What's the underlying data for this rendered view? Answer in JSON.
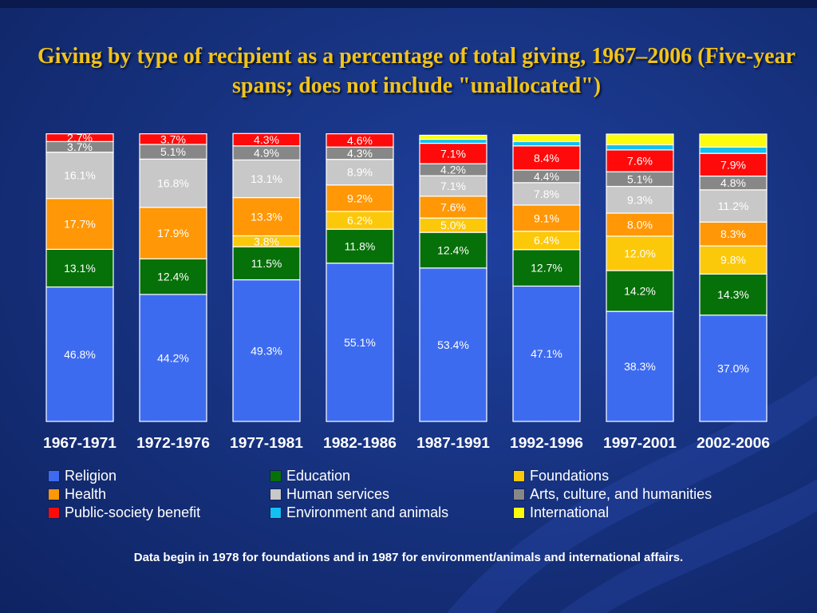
{
  "title": "Giving by type of recipient as a percentage of total giving, 1967–2006 (Five-year spans; does not include \"unallocated\")",
  "footnote": "Data begin in 1978 for foundations and in 1987 for environment/animals and international affairs.",
  "chart_data": {
    "type": "bar",
    "stacked": true,
    "categories": [
      "1967-1971",
      "1972-1976",
      "1977-1981",
      "1982-1986",
      "1987-1991",
      "1992-1996",
      "1997-2001",
      "2002-2006"
    ],
    "ylim": [
      0,
      100
    ],
    "legend_position": "bottom",
    "grid": false,
    "series": [
      {
        "name": "Religion",
        "color": "#3d6bf0",
        "values": [
          46.8,
          44.2,
          49.3,
          55.1,
          53.4,
          47.1,
          38.3,
          37.0
        ],
        "labels": [
          "46.8%",
          "44.2%",
          "49.3%",
          "55.1%",
          "53.4%",
          "47.1%",
          "38.3%",
          "37.0%"
        ]
      },
      {
        "name": "Education",
        "color": "#067009",
        "values": [
          13.1,
          12.4,
          11.5,
          11.8,
          12.4,
          12.7,
          14.2,
          14.3
        ],
        "labels": [
          "13.1%",
          "12.4%",
          "11.5%",
          "11.8%",
          "12.4%",
          "12.7%",
          "14.2%",
          "14.3%"
        ]
      },
      {
        "name": "Foundations",
        "color": "#fcc80a",
        "values": [
          0,
          0,
          3.8,
          6.2,
          5.0,
          6.4,
          12.0,
          9.8
        ],
        "labels": [
          "",
          "",
          "3.8%",
          "6.2%",
          "5.0%",
          "6.4%",
          "12.0%",
          "9.8%"
        ]
      },
      {
        "name": "Health",
        "color": "#ff9706",
        "values": [
          17.7,
          17.9,
          13.3,
          9.2,
          7.6,
          9.1,
          8.0,
          8.3
        ],
        "labels": [
          "17.7%",
          "17.9%",
          "13.3%",
          "9.2%",
          "7.6%",
          "9.1%",
          "8.0%",
          "8.3%"
        ]
      },
      {
        "name": "Human services",
        "color": "#c8c8c8",
        "values": [
          16.1,
          16.8,
          13.1,
          8.9,
          7.1,
          7.8,
          9.3,
          11.2
        ],
        "labels": [
          "16.1%",
          "16.8%",
          "13.1%",
          "8.9%",
          "7.1%",
          "7.8%",
          "9.3%",
          "11.2%"
        ]
      },
      {
        "name": "Arts, culture, and humanities",
        "color": "#878787",
        "values": [
          3.7,
          5.1,
          4.9,
          4.3,
          4.2,
          4.4,
          5.1,
          4.8
        ],
        "labels": [
          "3.7%",
          "5.1%",
          "4.9%",
          "4.3%",
          "4.2%",
          "4.4%",
          "5.1%",
          "4.8%"
        ]
      },
      {
        "name": "Public-society benefit",
        "color": "#ff0a0a",
        "values": [
          2.7,
          3.7,
          4.3,
          4.6,
          7.1,
          8.4,
          7.6,
          7.9
        ],
        "labels": [
          "2.7%",
          "3.7%",
          "4.3%",
          "4.6%",
          "7.1%",
          "8.4%",
          "7.6%",
          "7.9%"
        ]
      },
      {
        "name": "Environment and animals",
        "color": "#12c0f2",
        "values": [
          0,
          0,
          0,
          0,
          1.4,
          1.5,
          1.8,
          2.2
        ],
        "labels": [
          "",
          "",
          "",
          "",
          "",
          "",
          "",
          ""
        ]
      },
      {
        "name": "International",
        "color": "#fcfc0c",
        "values": [
          0,
          0,
          0,
          0,
          1.4,
          2.4,
          3.7,
          4.5
        ],
        "labels": [
          "",
          "",
          "",
          "",
          "",
          "",
          "",
          ""
        ]
      }
    ]
  }
}
